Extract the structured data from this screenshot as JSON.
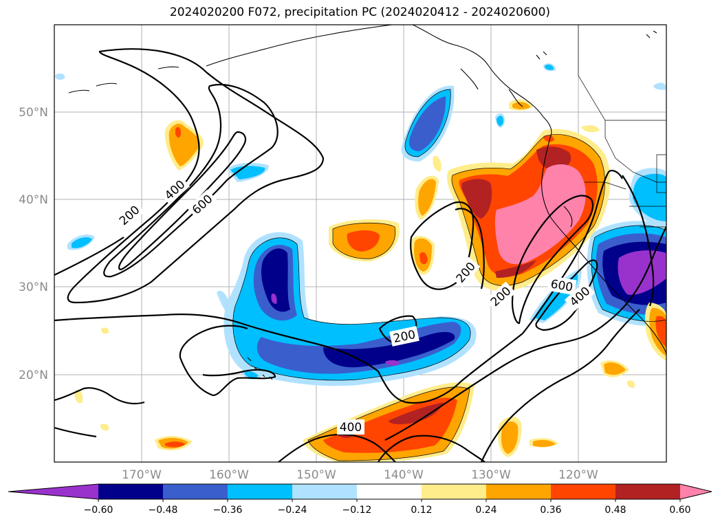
{
  "title": "2024020200 F072, precipitation PC (2024020412 - 2024020600)",
  "lat_labels": [
    "50°N",
    "40°N",
    "30°N",
    "20°N"
  ],
  "lon_labels": [
    "170°W",
    "160°W",
    "150°W",
    "140°W",
    "130°W",
    "120°W"
  ],
  "contour_labels": [
    "200",
    "400",
    "600",
    "200",
    "200",
    "200",
    "600",
    "400",
    "400"
  ],
  "colorbar": {
    "labels": [
      "−0.60",
      "−0.48",
      "−0.36",
      "−0.24",
      "−0.12",
      "0.12",
      "0.24",
      "0.36",
      "0.48",
      "0.60"
    ],
    "colors": [
      "#9932cc",
      "#00008b",
      "#3a5fcd",
      "#00bfff",
      "#b0e2ff",
      "#ffffff",
      "#ffec8b",
      "#ffa500",
      "#ff4500",
      "#b22222",
      "#ff82ab"
    ]
  }
}
